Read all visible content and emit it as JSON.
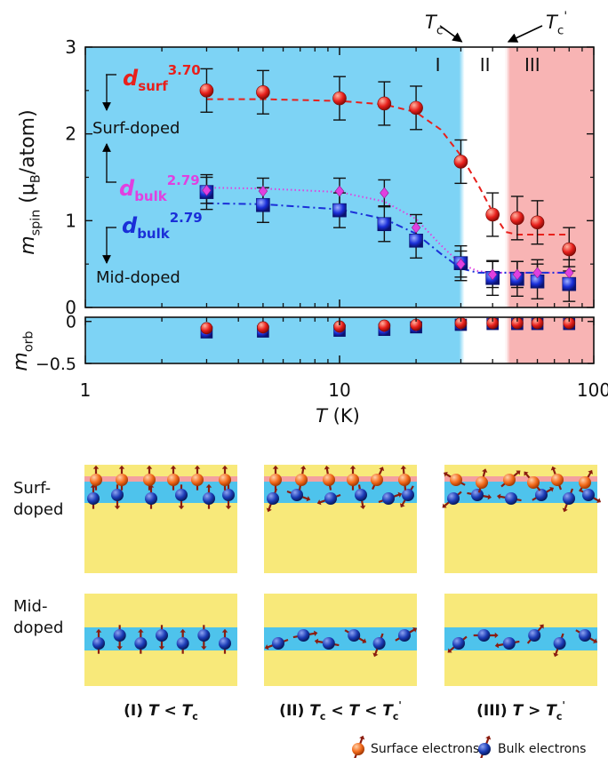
{
  "chart_data": [
    {
      "type": "scatter",
      "title": "",
      "xlabel": "T (K)",
      "xlabel_symbol": "T",
      "xlabel_unit": "(K)",
      "ylabel": "m_spin (μB/atom)",
      "ylabel_symbol": "m",
      "ylabel_sub": "spin",
      "ylabel_unit_open": "(μ",
      "ylabel_unit_sub": "B",
      "ylabel_unit_close": "/atom)",
      "x_scale": "log",
      "xlim": [
        1,
        100
      ],
      "ylim": [
        0,
        3
      ],
      "x_ticks": [
        1,
        10,
        100
      ],
      "x_tick_labels": [
        "1",
        "10",
        "100"
      ],
      "y_ticks": [
        0,
        1,
        2,
        3
      ],
      "y_tick_labels": [
        "0",
        "1",
        "2",
        "3"
      ],
      "regions": [
        {
          "label": "I",
          "from": 1,
          "to": 31,
          "color": "#7dd3f5"
        },
        {
          "label": "II",
          "from": 31,
          "to": 45,
          "color": "#ffffff"
        },
        {
          "label": "III",
          "from": 45,
          "to": 100,
          "color": "#f8b4b4"
        }
      ],
      "transition_labels": [
        {
          "text": "T",
          "sub": "c",
          "prime": "",
          "at": 31
        },
        {
          "text": "T",
          "sub": "c",
          "prime": "'",
          "at": 45
        }
      ],
      "series": [
        {
          "name": "d_surf^3.70",
          "label_main": "d",
          "label_sub": "surf",
          "label_sup": "3.70",
          "color": "#e8201c",
          "marker": "circle",
          "x": [
            3,
            5,
            10,
            15,
            20,
            30,
            40,
            50,
            60,
            80
          ],
          "y": [
            2.5,
            2.48,
            2.41,
            2.35,
            2.3,
            1.68,
            1.07,
            1.03,
            0.98,
            0.67
          ],
          "yerr": [
            0.25,
            0.25,
            0.25,
            0.25,
            0.25,
            0.25,
            0.25,
            0.25,
            0.25,
            0.25
          ],
          "fit_x": [
            3,
            5,
            10,
            15,
            20,
            25,
            30,
            35,
            40,
            45,
            50,
            60,
            80
          ],
          "fit_y": [
            2.4,
            2.4,
            2.38,
            2.34,
            2.25,
            2.05,
            1.75,
            1.42,
            1.1,
            0.87,
            0.84,
            0.84,
            0.84
          ],
          "fit_style": "dashed"
        },
        {
          "name": "d_bulk^2.79 (surf-doped)",
          "label_main": "d",
          "label_sub": "bulk",
          "label_sup": "2.79",
          "color": "#e040e0",
          "marker": "diamond",
          "x": [
            3,
            5,
            10,
            15,
            20,
            30,
            40,
            50,
            60,
            80
          ],
          "y": [
            1.35,
            1.34,
            1.34,
            1.32,
            0.92,
            0.5,
            0.38,
            0.38,
            0.4,
            0.4
          ],
          "yerr": [
            0.15,
            0.15,
            0.15,
            0.15,
            0.15,
            0.15,
            0.15,
            0.15,
            0.15,
            0.15
          ],
          "fit_x": [
            3,
            5,
            10,
            15,
            20,
            25,
            30,
            35,
            40,
            50,
            60,
            80
          ],
          "fit_y": [
            1.38,
            1.37,
            1.33,
            1.22,
            1.02,
            0.72,
            0.5,
            0.42,
            0.4,
            0.4,
            0.4,
            0.4
          ],
          "fit_style": "dotted"
        },
        {
          "name": "d_bulk^2.79 (mid-doped)",
          "label_main": "d",
          "label_sub": "bulk",
          "label_sup": "2.79",
          "color": "#1a2fd8",
          "marker": "square",
          "x": [
            3,
            5,
            10,
            15,
            20,
            30,
            40,
            50,
            60,
            80
          ],
          "y": [
            1.33,
            1.18,
            1.12,
            0.96,
            0.77,
            0.51,
            0.34,
            0.33,
            0.3,
            0.27
          ],
          "yerr": [
            0.2,
            0.2,
            0.2,
            0.2,
            0.2,
            0.2,
            0.2,
            0.2,
            0.2,
            0.2
          ],
          "fit_x": [
            3,
            5,
            10,
            15,
            20,
            25,
            30,
            35,
            40,
            50,
            60,
            80
          ],
          "fit_y": [
            1.2,
            1.19,
            1.13,
            1.02,
            0.85,
            0.62,
            0.45,
            0.4,
            0.4,
            0.4,
            0.4,
            0.4
          ],
          "fit_style": "dashdot"
        }
      ],
      "annotations": {
        "surf_doped": "Surf-doped",
        "mid_doped": "Mid-doped"
      }
    },
    {
      "type": "scatter",
      "title": "",
      "ylabel": "m_orb",
      "ylabel_symbol": "m",
      "ylabel_sub": "orb",
      "x_scale": "log",
      "xlim": [
        1,
        100
      ],
      "ylim": [
        -0.5,
        0.05
      ],
      "y_tick_labels": [
        "0",
        "−0.5"
      ],
      "series": [
        {
          "name": "surf",
          "color": "#e8201c",
          "marker": "circle",
          "x": [
            3,
            5,
            10,
            15,
            20,
            30,
            40,
            50,
            60,
            80
          ],
          "y": [
            -0.08,
            -0.07,
            -0.06,
            -0.05,
            -0.04,
            -0.02,
            -0.02,
            -0.02,
            -0.02,
            -0.02
          ]
        },
        {
          "name": "bulk-surf-doped",
          "color": "#e040e0",
          "marker": "diamond",
          "x": [
            3,
            5,
            10,
            15,
            20,
            30,
            40,
            50,
            60,
            80
          ],
          "y": [
            -0.1,
            -0.09,
            -0.08,
            -0.07,
            -0.06,
            -0.04,
            -0.03,
            -0.03,
            -0.03,
            -0.03
          ]
        },
        {
          "name": "bulk-mid-doped",
          "color": "#1a2fd8",
          "marker": "square",
          "x": [
            3,
            5,
            10,
            15,
            20,
            30,
            40,
            50,
            60,
            80
          ],
          "y": [
            -0.13,
            -0.12,
            -0.11,
            -0.1,
            -0.07,
            -0.04,
            -0.03,
            -0.03,
            -0.03,
            -0.03
          ]
        }
      ]
    }
  ],
  "schematic": {
    "row_labels": [
      "Surf-\ndoped",
      "Mid-\ndoped"
    ],
    "row_label_lines": [
      [
        "Surf-",
        "doped"
      ],
      [
        "Mid-",
        "doped"
      ]
    ],
    "captions": [
      {
        "prefix": "(I) ",
        "parts": [
          [
            "T",
            "it"
          ],
          [
            " < ",
            ""
          ],
          [
            "T",
            "it"
          ],
          [
            "c",
            "sub"
          ]
        ]
      },
      {
        "prefix": "(II) ",
        "parts": [
          [
            "T",
            "it"
          ],
          [
            "c",
            "sub"
          ],
          [
            " < ",
            ""
          ],
          [
            "T",
            "it"
          ],
          [
            " < ",
            ""
          ],
          [
            "T",
            "it"
          ],
          [
            "c",
            "sub"
          ],
          [
            "'",
            "sup"
          ]
        ]
      },
      {
        "prefix": "(III) ",
        "parts": [
          [
            "T",
            "it"
          ],
          [
            " > ",
            ""
          ],
          [
            "T",
            "it"
          ],
          [
            "c",
            "sub"
          ],
          [
            "'",
            "sup"
          ]
        ]
      }
    ],
    "legend": [
      {
        "label": "Surface electrons",
        "color": "#f26a1b"
      },
      {
        "label": "Bulk electrons",
        "color": "#1a3bb5"
      }
    ],
    "colors": {
      "substrate": "#f8e97a",
      "layer": "#4ec3ec",
      "surface": "#f4a0a0",
      "arrow": "#8b1d10"
    }
  }
}
